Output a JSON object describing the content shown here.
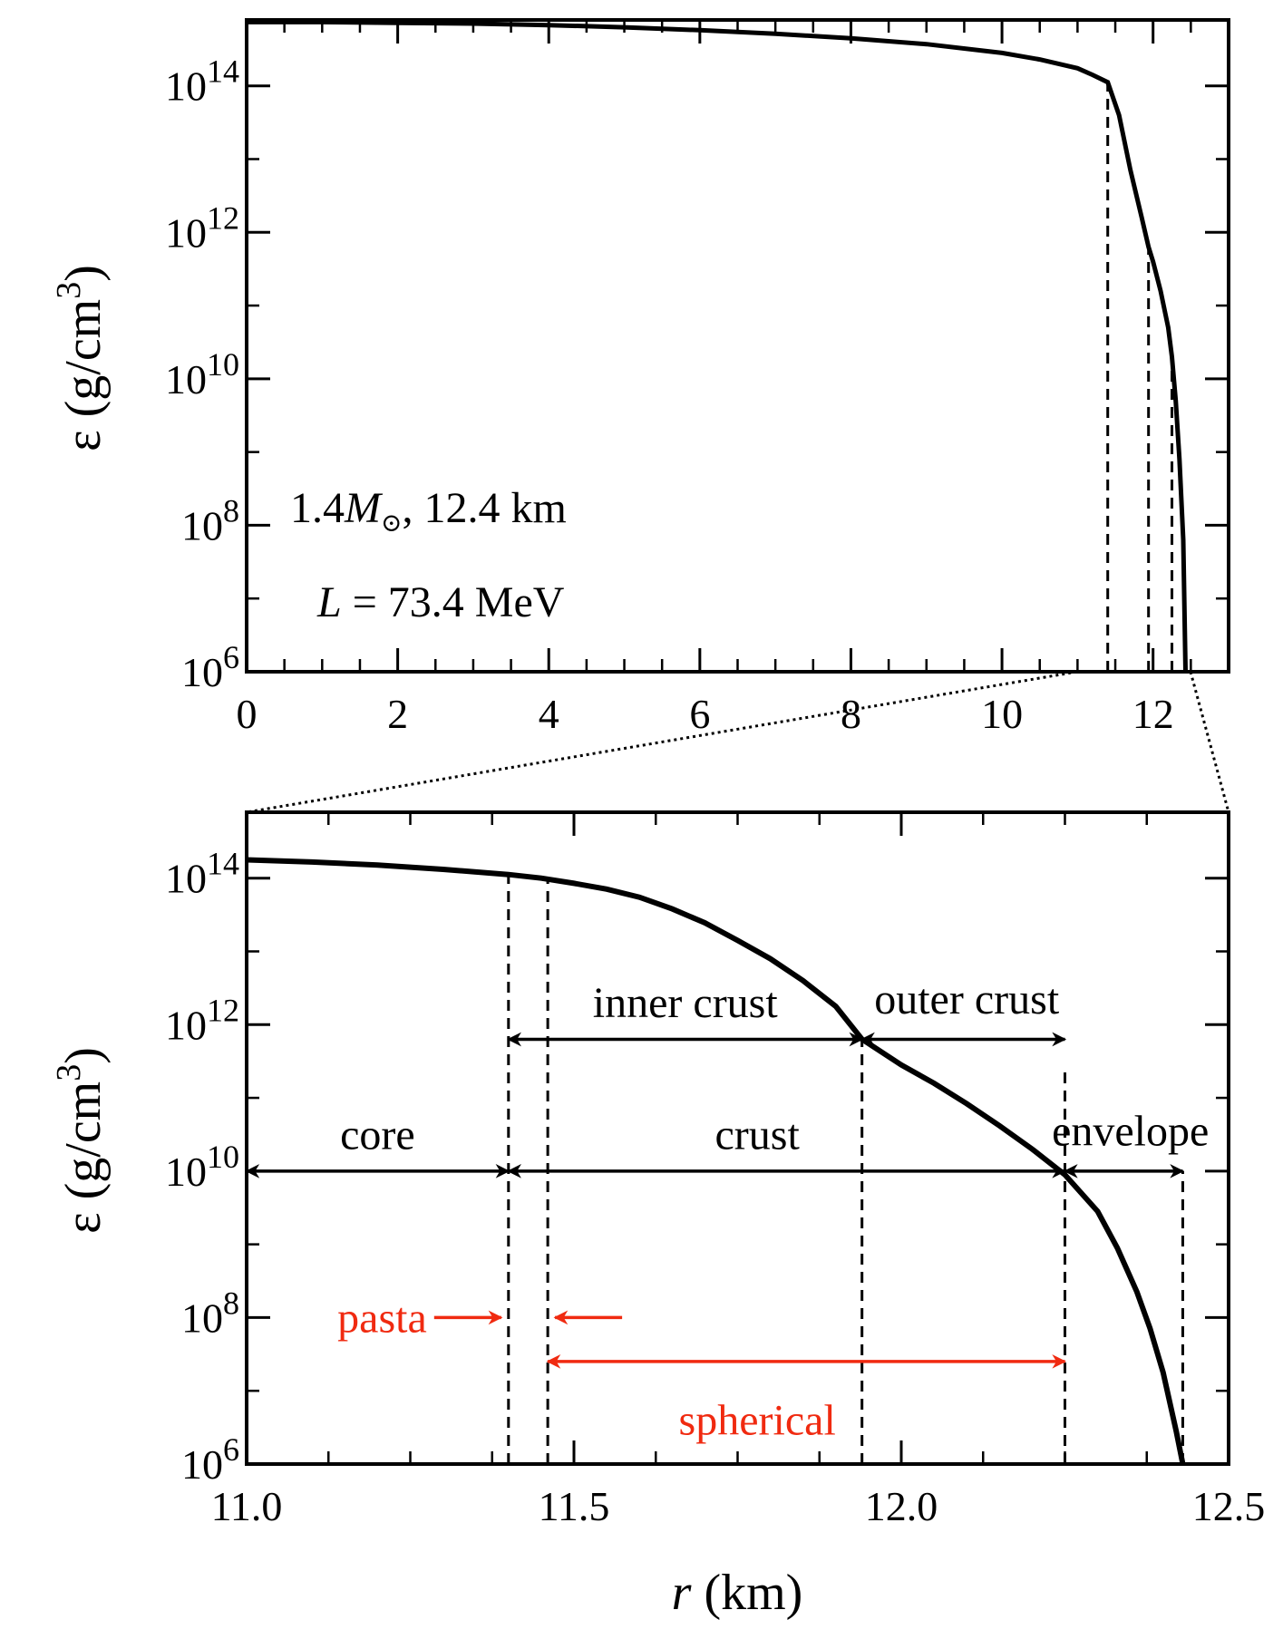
{
  "chart_data": [
    {
      "type": "line",
      "panel": "top",
      "title": "",
      "xlabel": "",
      "ylabel": "ε (g/cm3)",
      "xlim": [
        0,
        13
      ],
      "ylim_log10": [
        6,
        14.9
      ],
      "y_scale": "log",
      "grid": false,
      "x_ticks": [
        {
          "value": 0,
          "label": "0"
        },
        {
          "value": 2,
          "label": "2"
        },
        {
          "value": 4,
          "label": "4"
        },
        {
          "value": 6,
          "label": "6"
        },
        {
          "value": 8,
          "label": "8"
        },
        {
          "value": 10,
          "label": "10"
        },
        {
          "value": 12,
          "label": "12"
        }
      ],
      "y_ticks": [
        {
          "exp": 6,
          "base": "10",
          "sup": "6"
        },
        {
          "exp": 8,
          "base": "10",
          "sup": "8"
        },
        {
          "exp": 10,
          "base": "10",
          "sup": "10"
        },
        {
          "exp": 12,
          "base": "10",
          "sup": "12"
        },
        {
          "exp": 14,
          "base": "10",
          "sup": "14"
        }
      ],
      "annotations": {
        "line1_a": "1.4",
        "line1_m": "M",
        "line1_sun": "⊙",
        "line1_b": ", 12.4 km",
        "line2_a": "L",
        "line2_b": " = 73.4 MeV"
      },
      "series": [
        {
          "x": [
            0,
            1,
            2,
            3,
            4,
            5,
            6,
            7,
            8,
            9,
            10,
            10.5,
            11,
            11.2,
            11.4,
            11.55,
            11.7,
            11.85,
            11.94,
            12.0,
            12.1,
            12.2,
            12.25,
            12.3,
            12.35,
            12.4,
            12.43
          ],
          "log10_y": [
            14.87,
            14.87,
            14.86,
            14.85,
            14.83,
            14.8,
            14.76,
            14.71,
            14.65,
            14.57,
            14.45,
            14.36,
            14.24,
            14.15,
            14.05,
            13.6,
            12.85,
            12.2,
            11.8,
            11.6,
            11.2,
            10.7,
            10.3,
            9.7,
            8.9,
            7.8,
            6.0
          ]
        }
      ],
      "vlines": [
        11.4,
        11.94,
        12.25
      ]
    },
    {
      "type": "line",
      "panel": "bottom",
      "title": "",
      "xlabel_italic": "r",
      "xlabel_rest": " (km)",
      "ylabel": "ε (g/cm3)",
      "xlim": [
        11.0,
        12.5
      ],
      "ylim_log10": [
        6,
        14.9
      ],
      "y_scale": "log",
      "grid": false,
      "x_ticks": [
        {
          "value": 11.0,
          "label": "11.0"
        },
        {
          "value": 11.5,
          "label": "11.5"
        },
        {
          "value": 12.0,
          "label": "12.0"
        },
        {
          "value": 12.5,
          "label": "12.5"
        }
      ],
      "y_ticks": [
        {
          "exp": 6,
          "base": "10",
          "sup": "6"
        },
        {
          "exp": 8,
          "base": "10",
          "sup": "8"
        },
        {
          "exp": 10,
          "base": "10",
          "sup": "10"
        },
        {
          "exp": 12,
          "base": "10",
          "sup": "12"
        },
        {
          "exp": 14,
          "base": "10",
          "sup": "14"
        }
      ],
      "series": [
        {
          "x": [
            11.0,
            11.1,
            11.2,
            11.3,
            11.4,
            11.45,
            11.5,
            11.55,
            11.6,
            11.65,
            11.7,
            11.75,
            11.8,
            11.85,
            11.9,
            11.94,
            12.0,
            12.05,
            12.1,
            12.15,
            12.2,
            12.25,
            12.3,
            12.33,
            12.36,
            12.38,
            12.4,
            12.42,
            12.43
          ],
          "log10_y": [
            14.25,
            14.22,
            14.18,
            14.12,
            14.05,
            14.0,
            13.93,
            13.85,
            13.74,
            13.58,
            13.39,
            13.15,
            12.9,
            12.6,
            12.25,
            11.8,
            11.45,
            11.2,
            10.92,
            10.62,
            10.3,
            9.95,
            9.45,
            8.95,
            8.35,
            7.85,
            7.25,
            6.45,
            6.0
          ]
        }
      ],
      "vlines": [
        {
          "x": 11.4,
          "from_log10": 6,
          "to_log10": 14.05
        },
        {
          "x": 11.46,
          "from_log10": 6,
          "to_log10": 13.98
        },
        {
          "x": 11.94,
          "from_log10": 6,
          "to_log10": 11.8
        },
        {
          "x": 12.25,
          "from_log10": 6,
          "to_log10": 11.4
        },
        {
          "x": 12.43,
          "from_log10": 6,
          "to_log10": 10.0
        }
      ],
      "regions": [
        {
          "label": "inner crust",
          "x_from": 11.4,
          "x_to": 11.94,
          "log10_y": 11.8,
          "label_x": 11.67,
          "label_log10": 12.3,
          "color": "#000000"
        },
        {
          "label": "outer crust",
          "x_from": 11.94,
          "x_to": 12.25,
          "log10_y": 11.8,
          "label_x": 12.1,
          "label_log10": 12.35,
          "color": "#000000"
        },
        {
          "label": "core",
          "x_from": 11.0,
          "x_to": 11.4,
          "log10_y": 10.0,
          "label_x": 11.2,
          "label_log10": 10.5,
          "color": "#000000"
        },
        {
          "label": "crust",
          "x_from": 11.4,
          "x_to": 12.25,
          "log10_y": 10.0,
          "label_x": 11.78,
          "label_log10": 10.5,
          "color": "#000000"
        },
        {
          "label": "envelope",
          "x_from": 12.25,
          "x_to": 12.43,
          "log10_y": 10.0,
          "label_x": 12.35,
          "label_log10": 10.55,
          "color": "#000000"
        },
        {
          "label": "spherical",
          "x_from": 11.46,
          "x_to": 12.25,
          "log10_y": 7.4,
          "label_x": 11.78,
          "label_log10": 6.6,
          "color": "#f02a10"
        }
      ],
      "pasta": {
        "label": "pasta",
        "x_left_edge": 11.4,
        "x_right_edge": 11.46,
        "log10_y": 8.0,
        "color": "#f02a10"
      }
    }
  ]
}
